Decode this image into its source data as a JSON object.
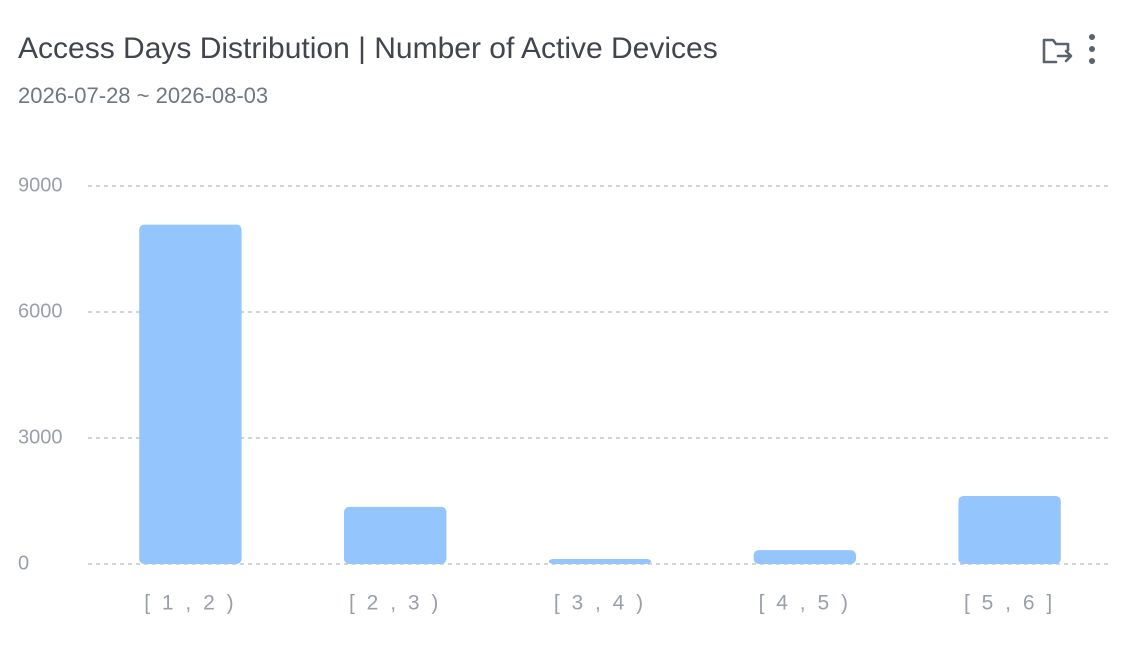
{
  "chart_data": {
    "type": "bar",
    "title": "Access Days Distribution | Number of Active Devices",
    "subtitle": "2026-07-28 ~ 2026-08-03",
    "categories": [
      "[ 1 , 2 )",
      "[ 2 , 3 )",
      "[ 3 , 4 )",
      "[ 4 , 5 )",
      "[ 5 , 6 ]"
    ],
    "values": [
      8080,
      1360,
      120,
      330,
      1620
    ],
    "color": "#94c6fd",
    "ylim": [
      0,
      9000
    ],
    "yticks": [
      0,
      3000,
      6000,
      9000
    ],
    "grid": true
  }
}
